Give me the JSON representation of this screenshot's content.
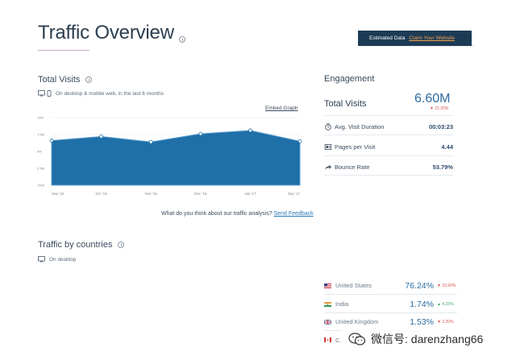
{
  "header": {
    "title": "Traffic Overview",
    "estimated_label": "Estimated Data",
    "claim_label": "Claim Your Website"
  },
  "visits": {
    "title": "Total Visits",
    "subtitle": "On desktop & mobile web, in the last 6 months",
    "embed_label": "Embed Graph"
  },
  "chart_data": {
    "type": "area",
    "categories": [
      "Sep '16",
      "Oct '16",
      "Nov '16",
      "Dec '16",
      "Jan '17",
      "Sep '17"
    ],
    "values": [
      6.6,
      7.2,
      6.4,
      7.6,
      8.1,
      6.5
    ],
    "y_tick_labels": [
      "10M",
      "7.5M",
      "5M",
      "2.5M",
      "<500"
    ],
    "ylim": [
      0,
      10
    ],
    "series_color": "#1f6fa8",
    "grid": true
  },
  "feedback": {
    "question": "What do you think about our traffic analysis?",
    "link": "Send Feedback"
  },
  "engagement": {
    "title": "Engagement",
    "total_visits_label": "Total Visits",
    "total_visits_value": "6.60M",
    "total_visits_change": "▼ 21.20%",
    "rows": [
      {
        "label": "Avg. Visit Duration",
        "value": "00:03:23",
        "icon": "clock-icon"
      },
      {
        "label": "Pages per Visit",
        "value": "4.44",
        "icon": "pages-icon"
      },
      {
        "label": "Bounce Rate",
        "value": "53.79%",
        "icon": "bounce-arrow-icon"
      }
    ]
  },
  "countries": {
    "title": "Traffic by countries",
    "subtitle": "On desktop",
    "rows": [
      {
        "name": "United States",
        "share": "76.24%",
        "change": "▼ 10.90%",
        "dir": "down"
      },
      {
        "name": "India",
        "share": "1.74%",
        "change": "▲ 4.15%",
        "dir": "up"
      },
      {
        "name": "United Kingdom",
        "share": "1.53%",
        "change": "▼ 2.20%",
        "dir": "down"
      },
      {
        "name": "C...",
        "share": "",
        "change": "",
        "dir": "down"
      }
    ]
  },
  "watermark": {
    "text": "微信号: darenzhang66"
  },
  "colors": {
    "accent": "#1f6fa8",
    "header_box": "#1d3b55",
    "claim_link": "#f5a14a",
    "positive": "#3aa860",
    "negative": "#d9534f"
  }
}
